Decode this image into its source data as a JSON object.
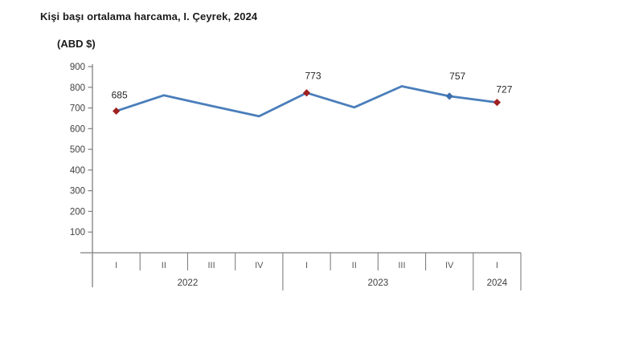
{
  "chart_data": {
    "type": "line",
    "title": "Kişi başı ortalama harcama, I. Çeyrek, 2024",
    "unit_label": "(ABD $)",
    "xlabel": "",
    "ylabel": "ABD $",
    "ylim": [
      0,
      900
    ],
    "yticks": [
      100,
      200,
      300,
      400,
      500,
      600,
      700,
      800,
      900
    ],
    "grid": false,
    "legend": "none",
    "x_axis_years": [
      {
        "year": "2022",
        "quarters": [
          "I",
          "II",
          "III",
          "IV"
        ]
      },
      {
        "year": "2023",
        "quarters": [
          "I",
          "II",
          "III",
          "IV"
        ]
      },
      {
        "year": "2024",
        "quarters": [
          "I"
        ]
      }
    ],
    "series": [
      {
        "name": "Kişi başı ortalama harcama (ABD $)",
        "points": [
          {
            "year": "2022",
            "quarter": "I",
            "value": 685,
            "label": "685",
            "marker": "red",
            "label_offset": [
              4,
              -16
            ]
          },
          {
            "year": "2022",
            "quarter": "II",
            "value": 761
          },
          {
            "year": "2022",
            "quarter": "III",
            "value": 710
          },
          {
            "year": "2022",
            "quarter": "IV",
            "value": 660
          },
          {
            "year": "2023",
            "quarter": "I",
            "value": 773,
            "label": "773",
            "marker": "red",
            "label_offset": [
              8,
              -17
            ]
          },
          {
            "year": "2023",
            "quarter": "II",
            "value": 703
          },
          {
            "year": "2023",
            "quarter": "III",
            "value": 805
          },
          {
            "year": "2023",
            "quarter": "IV",
            "value": 757,
            "label": "757",
            "marker": "blue",
            "label_offset": [
              10,
              -21
            ]
          },
          {
            "year": "2024",
            "quarter": "I",
            "value": 727,
            "label": "727",
            "marker": "red",
            "label_offset": [
              9,
              -12
            ]
          }
        ]
      }
    ],
    "colors": {
      "line": "#4a7ebb",
      "marker_red": "#9e2220",
      "marker_blue": "#3d6fae",
      "axis": "#7f7f7f",
      "tick_text": "#404040",
      "quarter_text": "#595959",
      "data_label_text": "#262626"
    }
  }
}
